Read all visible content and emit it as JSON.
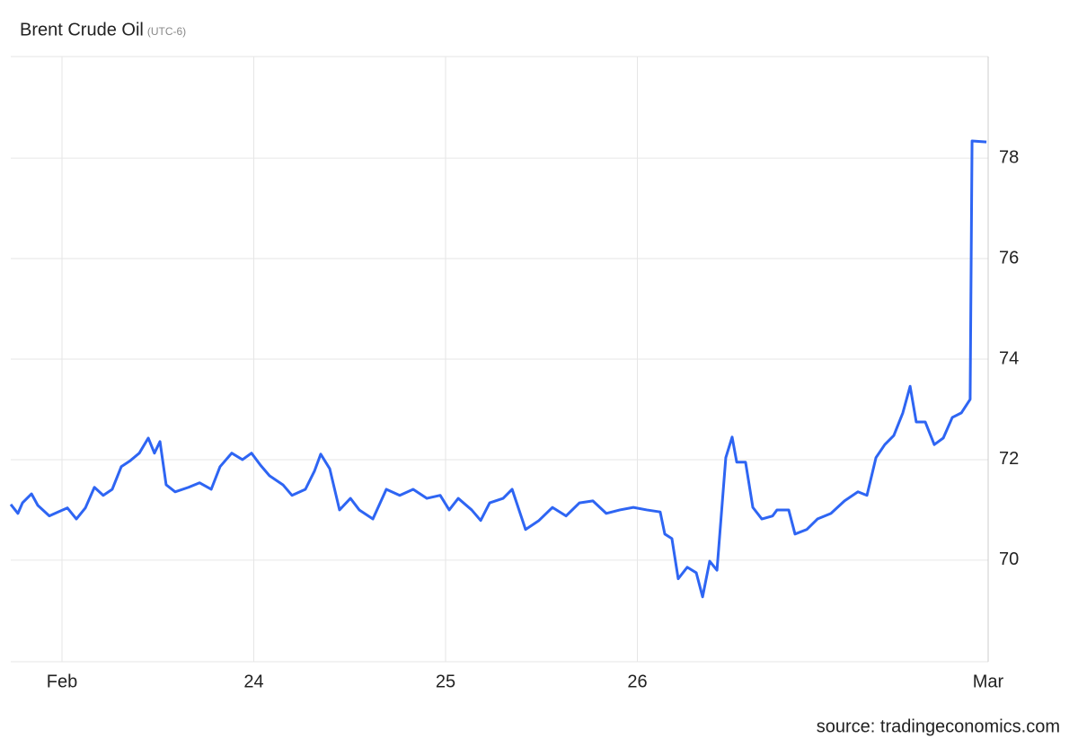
{
  "chart_data": {
    "type": "line",
    "title": "Brent Crude Oil",
    "subtitle": "(UTC-6)",
    "source": "source: tradingeconomics.com",
    "color": "#2e65f3",
    "grid": true,
    "xlim": [
      22.733,
      27.829
    ],
    "ylim": [
      67.98,
      80.02
    ],
    "xticks": [
      {
        "value": 23,
        "label": "Feb"
      },
      24,
      25,
      26,
      {
        "value": 27.829,
        "label": "Mar"
      }
    ],
    "yticks": [
      70,
      72,
      74,
      76,
      78
    ],
    "x": [
      22.733,
      22.77,
      22.794,
      22.841,
      22.874,
      22.934,
      22.981,
      23.028,
      23.075,
      23.122,
      23.169,
      23.215,
      23.262,
      23.309,
      23.356,
      23.403,
      23.45,
      23.482,
      23.511,
      23.543,
      23.59,
      23.66,
      23.717,
      23.778,
      23.824,
      23.885,
      23.941,
      23.988,
      24.035,
      24.082,
      24.152,
      24.199,
      24.269,
      24.316,
      24.349,
      24.396,
      24.447,
      24.504,
      24.55,
      24.621,
      24.691,
      24.761,
      24.831,
      24.902,
      24.972,
      25.019,
      25.066,
      25.136,
      25.183,
      25.23,
      25.3,
      25.347,
      25.417,
      25.487,
      25.557,
      25.628,
      25.698,
      25.768,
      25.838,
      25.909,
      25.979,
      26.049,
      26.119,
      26.143,
      26.18,
      26.213,
      26.26,
      26.307,
      26.34,
      26.377,
      26.415,
      26.461,
      26.494,
      26.518,
      26.564,
      26.602,
      26.649,
      26.705,
      26.728,
      26.789,
      26.822,
      26.883,
      26.939,
      27.009,
      27.08,
      27.15,
      27.197,
      27.244,
      27.29,
      27.337,
      27.384,
      27.422,
      27.454,
      27.501,
      27.548,
      27.595,
      27.642,
      27.689,
      27.735,
      27.745,
      27.82
    ],
    "values": [
      71.11,
      70.93,
      71.14,
      71.32,
      71.09,
      70.88,
      70.96,
      71.04,
      70.82,
      71.04,
      71.45,
      71.29,
      71.41,
      71.86,
      71.98,
      72.13,
      72.43,
      72.13,
      72.36,
      71.5,
      71.36,
      71.45,
      71.54,
      71.41,
      71.86,
      72.13,
      72.0,
      72.13,
      71.89,
      71.68,
      71.5,
      71.29,
      71.41,
      71.77,
      72.11,
      71.82,
      71.0,
      71.23,
      71.0,
      70.82,
      71.41,
      71.29,
      71.41,
      71.23,
      71.29,
      71.0,
      71.23,
      71.0,
      70.79,
      71.14,
      71.23,
      71.41,
      70.61,
      70.79,
      71.05,
      70.88,
      71.14,
      71.18,
      70.93,
      71.0,
      71.05,
      71.0,
      70.96,
      70.52,
      70.43,
      69.63,
      69.86,
      69.75,
      69.27,
      69.98,
      69.8,
      72.04,
      72.45,
      71.95,
      71.95,
      71.05,
      70.82,
      70.88,
      71.0,
      71.0,
      70.52,
      70.61,
      70.82,
      70.93,
      71.18,
      71.36,
      71.29,
      72.04,
      72.3,
      72.48,
      72.93,
      73.46,
      72.75,
      72.75,
      72.3,
      72.43,
      72.84,
      72.93,
      73.2,
      78.34,
      78.32
    ]
  }
}
